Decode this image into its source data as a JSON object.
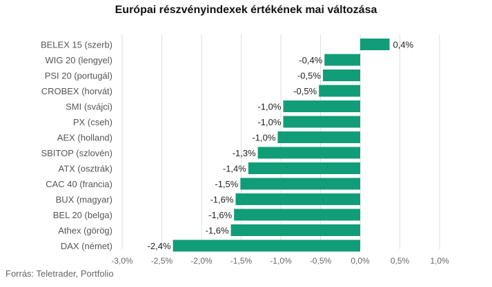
{
  "chart_data": {
    "type": "bar",
    "orientation": "horizontal",
    "title": "Európai részvényindexek értékének mai változása",
    "source": "Forrás: Teletrader, Portfolio",
    "bar_color": "#119d77",
    "categories": [
      "BELEX 15 (szerb)",
      "WIG 20 (lengyel)",
      "PSI 20 (portugál)",
      "CROBEX (horvát)",
      "SMI (svájci)",
      "PX (cseh)",
      "AEX (holland)",
      "SBITOP (szlovén)",
      "ATX (osztrák)",
      "CAC 40 (francia)",
      "BUX (magyar)",
      "BEL 20 (belga)",
      "Athex (görög)",
      "DAX (német)"
    ],
    "values": [
      0.37,
      -0.45,
      -0.47,
      -0.52,
      -0.97,
      -0.97,
      -1.04,
      -1.29,
      -1.41,
      -1.51,
      -1.57,
      -1.59,
      -1.63,
      -2.36
    ],
    "value_labels": [
      "0,4%",
      "-0,4%",
      "-0,5%",
      "-0,5%",
      "-1,0%",
      "-1,0%",
      "-1,0%",
      "-1,3%",
      "-1,4%",
      "-1,5%",
      "-1,6%",
      "-1,6%",
      "-1,6%",
      "-2,4%"
    ],
    "xlim": [
      -3.0,
      1.0
    ],
    "x_ticks": [
      -3.0,
      -2.5,
      -2.0,
      -1.5,
      -1.0,
      -0.5,
      0.0,
      0.5,
      1.0
    ],
    "x_tick_labels": [
      "-3,0%",
      "-2,5%",
      "-2,0%",
      "-1,5%",
      "-1,0%",
      "-0,5%",
      "0,0%",
      "0,5%",
      "1,0%"
    ],
    "grid": true,
    "legend": "none"
  }
}
